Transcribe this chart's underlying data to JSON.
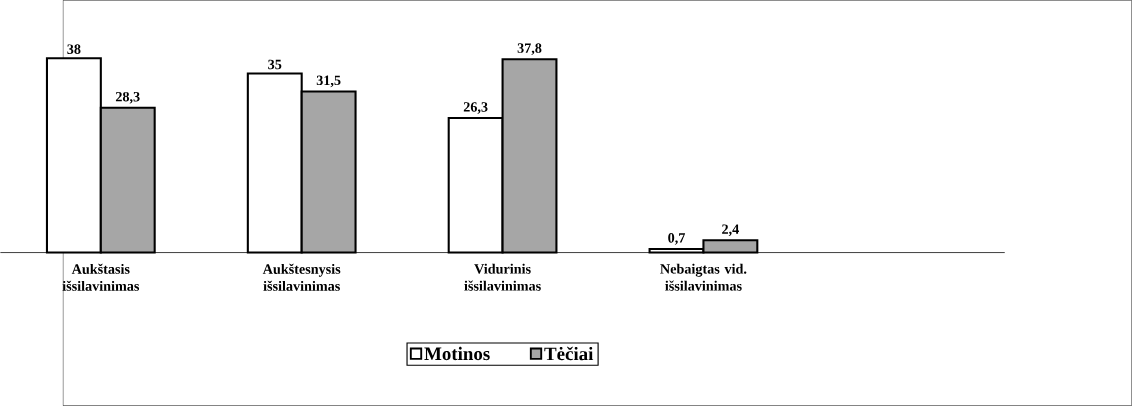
{
  "chart_data": {
    "type": "bar",
    "categories": [
      "Aukštasis išsilavinimas",
      "Aukštesnysis išsilavinimas",
      "Vidurinis išsilavinimas",
      "Nebaigtas vid. išsilavinimas",
      null
    ],
    "series": [
      {
        "name": "Motinos",
        "color": "#ffffff",
        "values": [
          38,
          35,
          26.3,
          0.7,
          null
        ],
        "value_labels": [
          "38",
          "35",
          "26,3",
          "0,7",
          null
        ]
      },
      {
        "name": "Tėčiai",
        "color": "#a6a6a6",
        "values": [
          28.3,
          31.5,
          37.8,
          2.4,
          null
        ],
        "value_labels": [
          "28,3",
          "31,5",
          "37,8",
          "2,4",
          null
        ]
      }
    ],
    "legend": "bottom"
  }
}
